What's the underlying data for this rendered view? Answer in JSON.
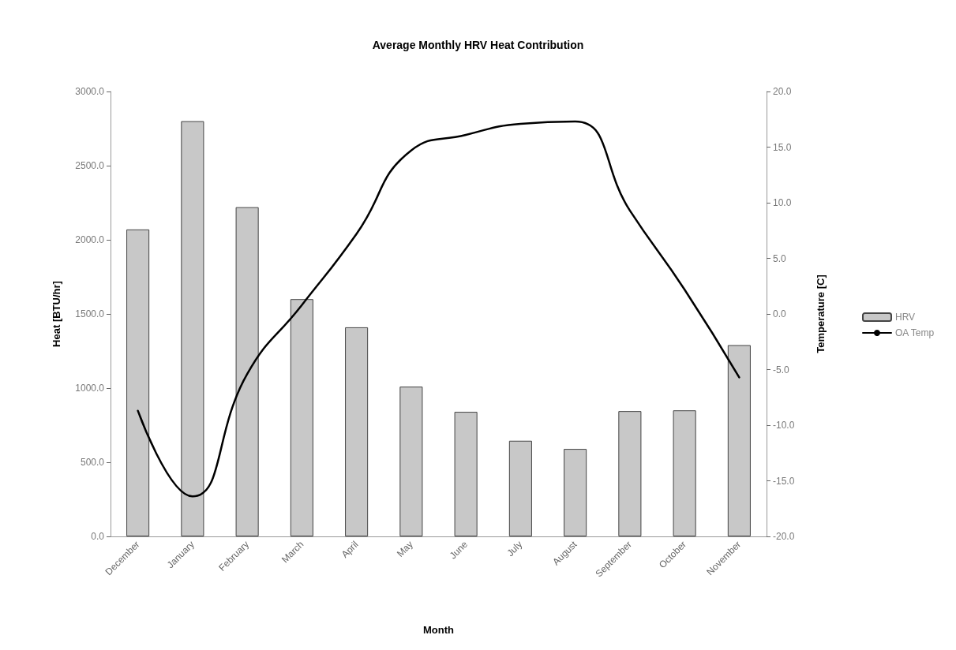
{
  "chart_data": {
    "type": "bar",
    "title": "Average Monthly HRV Heat Contribution",
    "xlabel": "Month",
    "ylabel": "Heat [BTU/hr]",
    "y2label": "Temperature [C]",
    "categories": [
      "December",
      "January",
      "February",
      "March",
      "April",
      "May",
      "June",
      "July",
      "August",
      "September",
      "October",
      "November"
    ],
    "series": [
      {
        "name": "HRV",
        "color": "#c8c8c8",
        "values": [
          2070,
          2800,
          2220,
          1600,
          1410,
          1010,
          840,
          645,
          590,
          845,
          850,
          1290
        ]
      },
      {
        "name": "OA Temp",
        "type": "line",
        "axis": "y2",
        "color": "#000000",
        "marker": "none",
        "line_style": "solid",
        "values": [
          -8.7,
          -16.4,
          -5.4,
          0.8,
          7.2,
          14.7,
          16.1,
          17.1,
          17.3,
          9.3,
          2.2,
          -5.7
        ]
      }
    ],
    "ylim": [
      0,
      3000
    ],
    "yticks": [
      {
        "value": 0,
        "label": "0.0"
      },
      {
        "value": 500,
        "label": "500.0"
      },
      {
        "value": 1000,
        "label": "1000.0"
      },
      {
        "value": 1500,
        "label": "1500.0"
      },
      {
        "value": 2000,
        "label": "2000.0"
      },
      {
        "value": 2500,
        "label": "2500.0"
      },
      {
        "value": 3000,
        "label": "3000.0"
      }
    ],
    "y2lim": [
      -20,
      20
    ],
    "y2ticks": [
      {
        "value": -20,
        "label": "-20.0"
      },
      {
        "value": -15,
        "label": "-15.0"
      },
      {
        "value": -10,
        "label": "-10.0"
      },
      {
        "value": -5,
        "label": "-5.0"
      },
      {
        "value": 0,
        "label": "0.0"
      },
      {
        "value": 5,
        "label": "5.0"
      },
      {
        "value": 10,
        "label": "10.0"
      },
      {
        "value": 15,
        "label": "15.0"
      },
      {
        "value": 20,
        "label": "20.0"
      }
    ],
    "grid": false,
    "legend": "right"
  }
}
